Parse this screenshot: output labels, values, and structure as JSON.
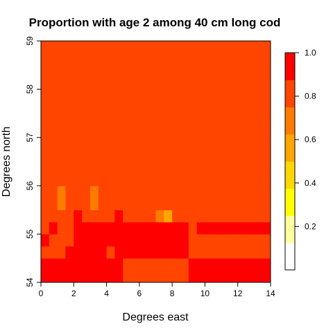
{
  "chart_data": {
    "type": "heatmap",
    "title": "Proportion with age 2 among 40 cm long cod",
    "xlabel": "Degrees east",
    "ylabel": "Degrees north",
    "xlim": [
      0,
      14
    ],
    "ylim": [
      54,
      59
    ],
    "x_ticks": [
      "0",
      "2",
      "4",
      "6",
      "8",
      "10",
      "12",
      "14"
    ],
    "y_ticks": [
      "54",
      "55",
      "56",
      "57",
      "58",
      "59"
    ],
    "colorbar": {
      "range": [
        0,
        1
      ],
      "ticks": [
        "0.2",
        "0.4",
        "0.6",
        "0.8",
        "1.0"
      ],
      "colors": [
        "#FFFFFF",
        "#FFFF9F",
        "#FFFF00",
        "#FFD700",
        "#FFA500",
        "#FF7B00",
        "#FF4500",
        "#FF0000"
      ]
    },
    "grid": {
      "x_start": 0,
      "y_start": 54,
      "dx": 0.5,
      "dy": 0.25,
      "nx": 28,
      "ny": 20
    },
    "values": [
      [
        0.94,
        0.94,
        0.94,
        0.92,
        0.9,
        0.96,
        0.96,
        0.96,
        0.94,
        0.93,
        0.86,
        0.86,
        0.86,
        0.86,
        0.86,
        0.86,
        0.86,
        0.86,
        0.93,
        0.96,
        0.96,
        0.96,
        0.96,
        0.96,
        0.96,
        0.96,
        0.96,
        0.96
      ],
      [
        0.94,
        0.96,
        0.96,
        0.94,
        0.9,
        0.96,
        0.96,
        0.96,
        0.94,
        0.93,
        0.86,
        0.86,
        0.86,
        0.86,
        0.86,
        0.86,
        0.86,
        0.86,
        0.94,
        0.96,
        0.96,
        0.96,
        0.96,
        0.96,
        0.96,
        0.96,
        0.96,
        0.96
      ],
      [
        0.86,
        0.86,
        0.86,
        0.92,
        0.9,
        0.9,
        0.9,
        0.9,
        0.86,
        0.96,
        0.96,
        0.96,
        0.96,
        0.96,
        0.96,
        0.96,
        0.96,
        0.96,
        0.86,
        0.86,
        0.86,
        0.86,
        0.86,
        0.86,
        0.86,
        0.86,
        0.86,
        0.86
      ],
      [
        0.92,
        0.86,
        0.86,
        0.8,
        0.9,
        0.9,
        0.9,
        0.9,
        0.9,
        0.96,
        0.96,
        0.96,
        0.96,
        0.96,
        0.96,
        0.96,
        0.96,
        0.96,
        0.86,
        0.86,
        0.86,
        0.86,
        0.86,
        0.86,
        0.86,
        0.86,
        0.86,
        0.86
      ],
      [
        0.86,
        0.9,
        0.86,
        0.86,
        0.9,
        0.9,
        0.9,
        0.9,
        0.9,
        0.9,
        0.9,
        0.9,
        0.9,
        0.9,
        0.9,
        0.9,
        0.9,
        0.9,
        0.86,
        0.9,
        0.9,
        0.9,
        0.9,
        0.9,
        0.9,
        0.9,
        0.9,
        0.9
      ],
      [
        0.86,
        0.86,
        0.86,
        0.86,
        0.9,
        0.86,
        0.86,
        0.86,
        0.86,
        0.9,
        0.8,
        0.8,
        0.8,
        0.8,
        0.7,
        0.6,
        0.82,
        0.82,
        0.82,
        0.82,
        0.82,
        0.82,
        0.82,
        0.82,
        0.82,
        0.82,
        0.82,
        0.82
      ],
      [
        0.82,
        0.86,
        0.72,
        0.8,
        0.82,
        0.82,
        0.74,
        0.82,
        0.82,
        0.82,
        0.82,
        0.82,
        0.82,
        0.82,
        0.82,
        0.82,
        0.82,
        0.82,
        0.82,
        0.82,
        0.82,
        0.82,
        0.82,
        0.82,
        0.82,
        0.82,
        0.82,
        0.82
      ],
      [
        0.82,
        0.86,
        0.72,
        0.8,
        0.82,
        0.82,
        0.74,
        0.82,
        0.82,
        0.82,
        0.82,
        0.82,
        0.82,
        0.82,
        0.82,
        0.82,
        0.82,
        0.82,
        0.82,
        0.82,
        0.82,
        0.82,
        0.82,
        0.82,
        0.82,
        0.82,
        0.82,
        0.82
      ],
      [
        0.82,
        0.82,
        0.82,
        0.82,
        0.82,
        0.82,
        0.82,
        0.82,
        0.82,
        0.82,
        0.82,
        0.82,
        0.82,
        0.82,
        0.82,
        0.82,
        0.82,
        0.82,
        0.82,
        0.82,
        0.82,
        0.82,
        0.82,
        0.82,
        0.82,
        0.82,
        0.82,
        0.82
      ],
      [
        0.82,
        0.82,
        0.82,
        0.82,
        0.82,
        0.82,
        0.82,
        0.82,
        0.82,
        0.82,
        0.82,
        0.82,
        0.82,
        0.82,
        0.82,
        0.82,
        0.82,
        0.82,
        0.82,
        0.82,
        0.82,
        0.82,
        0.82,
        0.82,
        0.82,
        0.82,
        0.82,
        0.82
      ],
      [
        0.82,
        0.82,
        0.82,
        0.82,
        0.82,
        0.82,
        0.82,
        0.82,
        0.82,
        0.82,
        0.82,
        0.82,
        0.82,
        0.82,
        0.82,
        0.82,
        0.82,
        0.82,
        0.82,
        0.82,
        0.82,
        0.82,
        0.82,
        0.82,
        0.82,
        0.82,
        0.82,
        0.82
      ],
      [
        0.82,
        0.82,
        0.82,
        0.82,
        0.82,
        0.82,
        0.82,
        0.82,
        0.82,
        0.82,
        0.82,
        0.82,
        0.82,
        0.82,
        0.82,
        0.82,
        0.82,
        0.82,
        0.82,
        0.82,
        0.82,
        0.82,
        0.82,
        0.82,
        0.82,
        0.82,
        0.82,
        0.82
      ],
      [
        0.82,
        0.82,
        0.82,
        0.82,
        0.82,
        0.82,
        0.82,
        0.82,
        0.82,
        0.82,
        0.82,
        0.82,
        0.82,
        0.82,
        0.82,
        0.82,
        0.82,
        0.82,
        0.82,
        0.82,
        0.82,
        0.82,
        0.82,
        0.82,
        0.82,
        0.82,
        0.82,
        0.82
      ],
      [
        0.82,
        0.82,
        0.82,
        0.82,
        0.82,
        0.82,
        0.82,
        0.82,
        0.82,
        0.82,
        0.82,
        0.82,
        0.82,
        0.82,
        0.82,
        0.82,
        0.82,
        0.82,
        0.82,
        0.82,
        0.82,
        0.82,
        0.82,
        0.82,
        0.82,
        0.82,
        0.82,
        0.82
      ],
      [
        0.82,
        0.82,
        0.82,
        0.82,
        0.82,
        0.82,
        0.82,
        0.82,
        0.82,
        0.82,
        0.82,
        0.82,
        0.82,
        0.82,
        0.82,
        0.82,
        0.82,
        0.82,
        0.82,
        0.82,
        0.82,
        0.82,
        0.82,
        0.82,
        0.82,
        0.82,
        0.82,
        0.82
      ],
      [
        0.82,
        0.82,
        0.82,
        0.82,
        0.82,
        0.82,
        0.82,
        0.82,
        0.82,
        0.82,
        0.82,
        0.82,
        0.82,
        0.82,
        0.82,
        0.82,
        0.82,
        0.82,
        0.82,
        0.82,
        0.82,
        0.82,
        0.82,
        0.82,
        0.82,
        0.82,
        0.82,
        0.82
      ],
      [
        0.82,
        0.82,
        0.82,
        0.82,
        0.82,
        0.82,
        0.82,
        0.82,
        0.82,
        0.82,
        0.82,
        0.82,
        0.82,
        0.82,
        0.82,
        0.82,
        0.82,
        0.82,
        0.82,
        0.82,
        0.82,
        0.82,
        0.82,
        0.82,
        0.82,
        0.82,
        0.82,
        0.82
      ],
      [
        0.82,
        0.82,
        0.82,
        0.82,
        0.82,
        0.82,
        0.82,
        0.82,
        0.82,
        0.82,
        0.82,
        0.82,
        0.82,
        0.82,
        0.82,
        0.82,
        0.82,
        0.82,
        0.82,
        0.82,
        0.82,
        0.82,
        0.82,
        0.82,
        0.82,
        0.82,
        0.82,
        0.82
      ],
      [
        0.82,
        0.82,
        0.82,
        0.82,
        0.82,
        0.82,
        0.82,
        0.82,
        0.82,
        0.82,
        0.82,
        0.82,
        0.82,
        0.82,
        0.82,
        0.82,
        0.82,
        0.82,
        0.82,
        0.82,
        0.82,
        0.82,
        0.82,
        0.82,
        0.82,
        0.82,
        0.82,
        0.82
      ],
      [
        0.82,
        0.82,
        0.82,
        0.82,
        0.82,
        0.82,
        0.82,
        0.82,
        0.82,
        0.82,
        0.82,
        0.82,
        0.82,
        0.82,
        0.82,
        0.82,
        0.82,
        0.82,
        0.82,
        0.82,
        0.82,
        0.82,
        0.82,
        0.82,
        0.82,
        0.82,
        0.82,
        0.82
      ]
    ]
  }
}
